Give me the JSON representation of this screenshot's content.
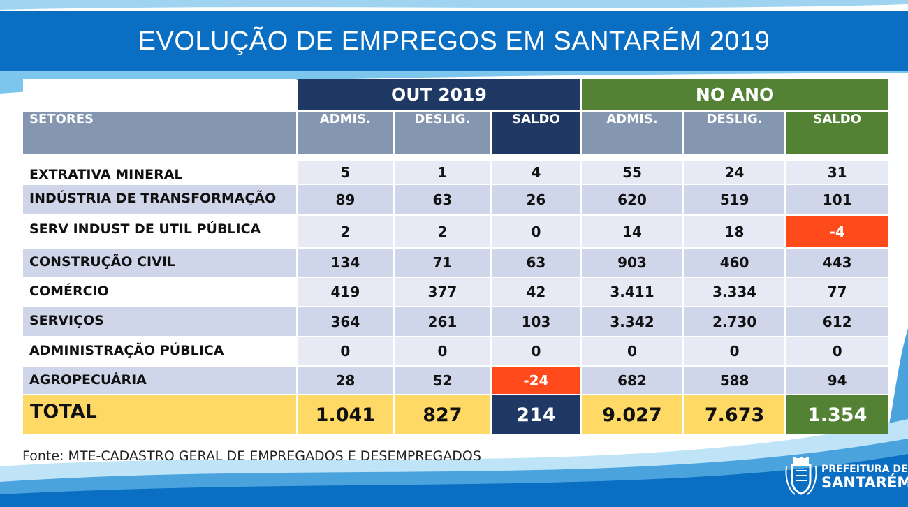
{
  "title": "EVOLUÇÃO DE EMPREGOS EM SANTARÉM 2019",
  "colors": {
    "banner_blue": "#0a6fc2",
    "dark_navy": "#1f3864",
    "green": "#548235",
    "header_gray": "#8496b0",
    "row_light": "#e7eaf4",
    "row_dark": "#cfd6ea",
    "negative": "#ff4b1c",
    "total_yellow": "#ffd966"
  },
  "table": {
    "groups": {
      "out": "OUT 2019",
      "ano": "NO ANO"
    },
    "columns": {
      "setores": "SETORES",
      "admis": "ADMIS.",
      "deslig": "DESLIG.",
      "saldo": "SALDO"
    },
    "rows": [
      {
        "setor": "EXTRATIVA MINERAL",
        "out_admis": "5",
        "out_deslig": "1",
        "out_saldo": "4",
        "ano_admis": "55",
        "ano_deslig": "24",
        "ano_saldo": "31"
      },
      {
        "setor": "INDÚSTRIA DE TRANSFORMAÇÃO",
        "out_admis": "89",
        "out_deslig": "63",
        "out_saldo": "26",
        "ano_admis": "620",
        "ano_deslig": "519",
        "ano_saldo": "101"
      },
      {
        "setor": "SERV INDUST DE UTIL PÚBLICA",
        "out_admis": "2",
        "out_deslig": "2",
        "out_saldo": "0",
        "ano_admis": "14",
        "ano_deslig": "18",
        "ano_saldo": "-4"
      },
      {
        "setor": "CONSTRUÇÃO CIVIL",
        "out_admis": "134",
        "out_deslig": "71",
        "out_saldo": "63",
        "ano_admis": "903",
        "ano_deslig": "460",
        "ano_saldo": "443"
      },
      {
        "setor": "COMÉRCIO",
        "out_admis": "419",
        "out_deslig": "377",
        "out_saldo": "42",
        "ano_admis": "3.411",
        "ano_deslig": "3.334",
        "ano_saldo": "77"
      },
      {
        "setor": "SERVIÇOS",
        "out_admis": "364",
        "out_deslig": "261",
        "out_saldo": "103",
        "ano_admis": "3.342",
        "ano_deslig": "2.730",
        "ano_saldo": "612"
      },
      {
        "setor": "ADMINISTRAÇÃO PÚBLICA",
        "out_admis": "0",
        "out_deslig": "0",
        "out_saldo": "0",
        "ano_admis": "0",
        "ano_deslig": "0",
        "ano_saldo": "0"
      },
      {
        "setor": "AGROPECUÁRIA",
        "out_admis": "28",
        "out_deslig": "52",
        "out_saldo": "-24",
        "ano_admis": "682",
        "ano_deslig": "588",
        "ano_saldo": "94"
      }
    ],
    "total": {
      "label": "TOTAL",
      "out_admis": "1.041",
      "out_deslig": "827",
      "out_saldo": "214",
      "ano_admis": "9.027",
      "ano_deslig": "7.673",
      "ano_saldo": "1.354"
    }
  },
  "source": "Fonte: MTE-CADASTRO GERAL DE EMPREGADOS E DESEMPREGADOS",
  "logo": {
    "line1": "PREFEITURA DE",
    "line2": "SANTARÉM"
  }
}
